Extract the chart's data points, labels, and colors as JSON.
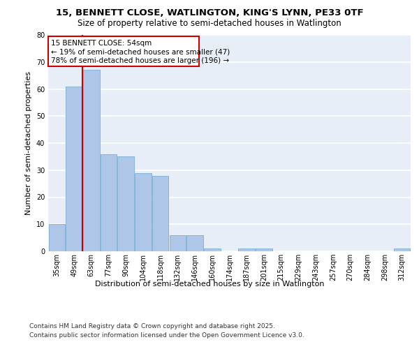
{
  "title1": "15, BENNETT CLOSE, WATLINGTON, KING'S LYNN, PE33 0TF",
  "title2": "Size of property relative to semi-detached houses in Watlington",
  "xlabel": "Distribution of semi-detached houses by size in Watlington",
  "ylabel": "Number of semi-detached properties",
  "categories": [
    "35sqm",
    "49sqm",
    "63sqm",
    "77sqm",
    "90sqm",
    "104sqm",
    "118sqm",
    "132sqm",
    "146sqm",
    "160sqm",
    "174sqm",
    "187sqm",
    "201sqm",
    "215sqm",
    "229sqm",
    "243sqm",
    "257sqm",
    "270sqm",
    "284sqm",
    "298sqm",
    "312sqm"
  ],
  "values": [
    10,
    61,
    67,
    36,
    35,
    29,
    28,
    6,
    6,
    1,
    0,
    1,
    1,
    0,
    0,
    0,
    0,
    0,
    0,
    0,
    1
  ],
  "bar_color": "#aec6e8",
  "bar_edge_color": "#7ab0d4",
  "background_color": "#e8eef8",
  "grid_color": "#ffffff",
  "marker_label": "15 BENNETT CLOSE: 54sqm",
  "annotation_line1": "← 19% of semi-detached houses are smaller (47)",
  "annotation_line2": "78% of semi-detached houses are larger (196) →",
  "box_color": "#ffffff",
  "box_edge_color": "#cc0000",
  "marker_line_color": "#cc0000",
  "ylim": [
    0,
    80
  ],
  "yticks": [
    0,
    10,
    20,
    30,
    40,
    50,
    60,
    70,
    80
  ],
  "footer_line1": "Contains HM Land Registry data © Crown copyright and database right 2025.",
  "footer_line2": "Contains public sector information licensed under the Open Government Licence v3.0.",
  "title_fontsize": 9.5,
  "subtitle_fontsize": 8.5,
  "axis_label_fontsize": 8,
  "tick_fontsize": 7,
  "footer_fontsize": 6.5,
  "annotation_fontsize": 7.5
}
